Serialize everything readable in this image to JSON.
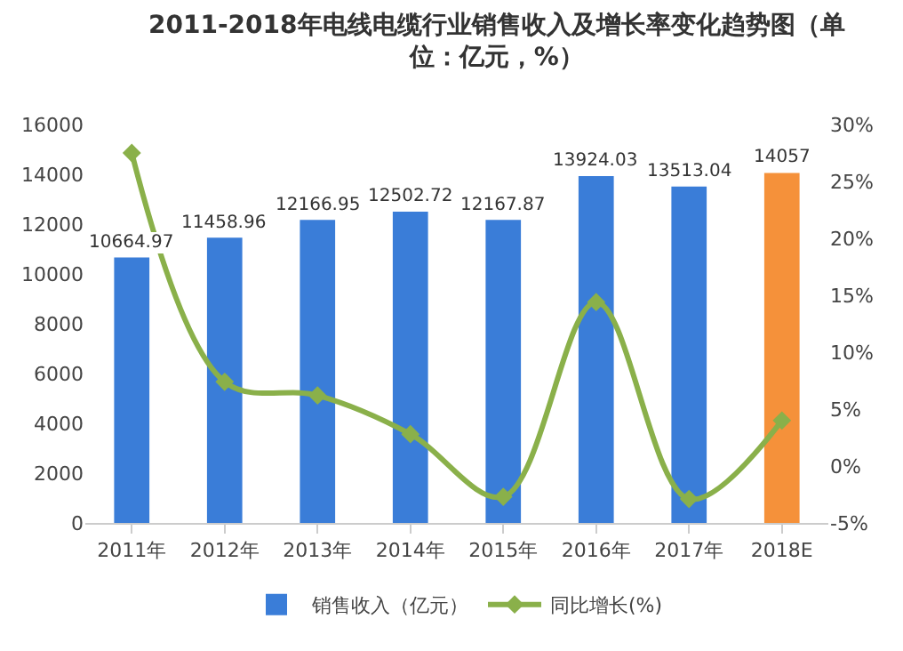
{
  "chart_data": {
    "type": "bar",
    "title": "2011-2018年电线电缆行业销售收入及增长率变化趋势图（单位：亿元，%）",
    "categories": [
      "2011年",
      "2012年",
      "2013年",
      "2014年",
      "2015年",
      "2016年",
      "2017年",
      "2018E"
    ],
    "series": [
      {
        "name": "销售收入（亿元）",
        "colors": [
          "#3a7dd8",
          "#3a7dd8",
          "#3a7dd8",
          "#3a7dd8",
          "#3a7dd8",
          "#3a7dd8",
          "#3a7dd8",
          "#f5913a"
        ],
        "values": [
          10664.97,
          11458.96,
          12166.95,
          12502.72,
          12167.87,
          13924.03,
          13513.04,
          14057
        ],
        "value_labels": [
          "10664.97",
          "11458.96",
          "12166.95",
          "12502.72",
          "12167.87",
          "13924.03",
          "13513.04",
          "14057"
        ]
      },
      {
        "name": "同比增长(%)",
        "type": "line",
        "axis": "y2",
        "color": "#8ab04a",
        "marker": "diamond",
        "line_style": "solid",
        "values": [
          27.5,
          7.4,
          6.2,
          2.8,
          -2.7,
          14.4,
          -2.9,
          4.0
        ]
      }
    ],
    "ylim": [
      0,
      16000
    ],
    "yticks": [
      0,
      2000,
      4000,
      6000,
      8000,
      10000,
      12000,
      14000,
      16000
    ],
    "y2lim": [
      -5,
      30
    ],
    "y2ticks": [
      {
        "value": -5,
        "label": "-5%"
      },
      {
        "value": 0,
        "label": "0%"
      },
      {
        "value": 5,
        "label": "5%"
      },
      {
        "value": 10,
        "label": "10%"
      },
      {
        "value": 15,
        "label": "15%"
      },
      {
        "value": 20,
        "label": "20%"
      },
      {
        "value": 25,
        "label": "25%"
      },
      {
        "value": 30,
        "label": "30%"
      }
    ],
    "legend": "bottom"
  }
}
